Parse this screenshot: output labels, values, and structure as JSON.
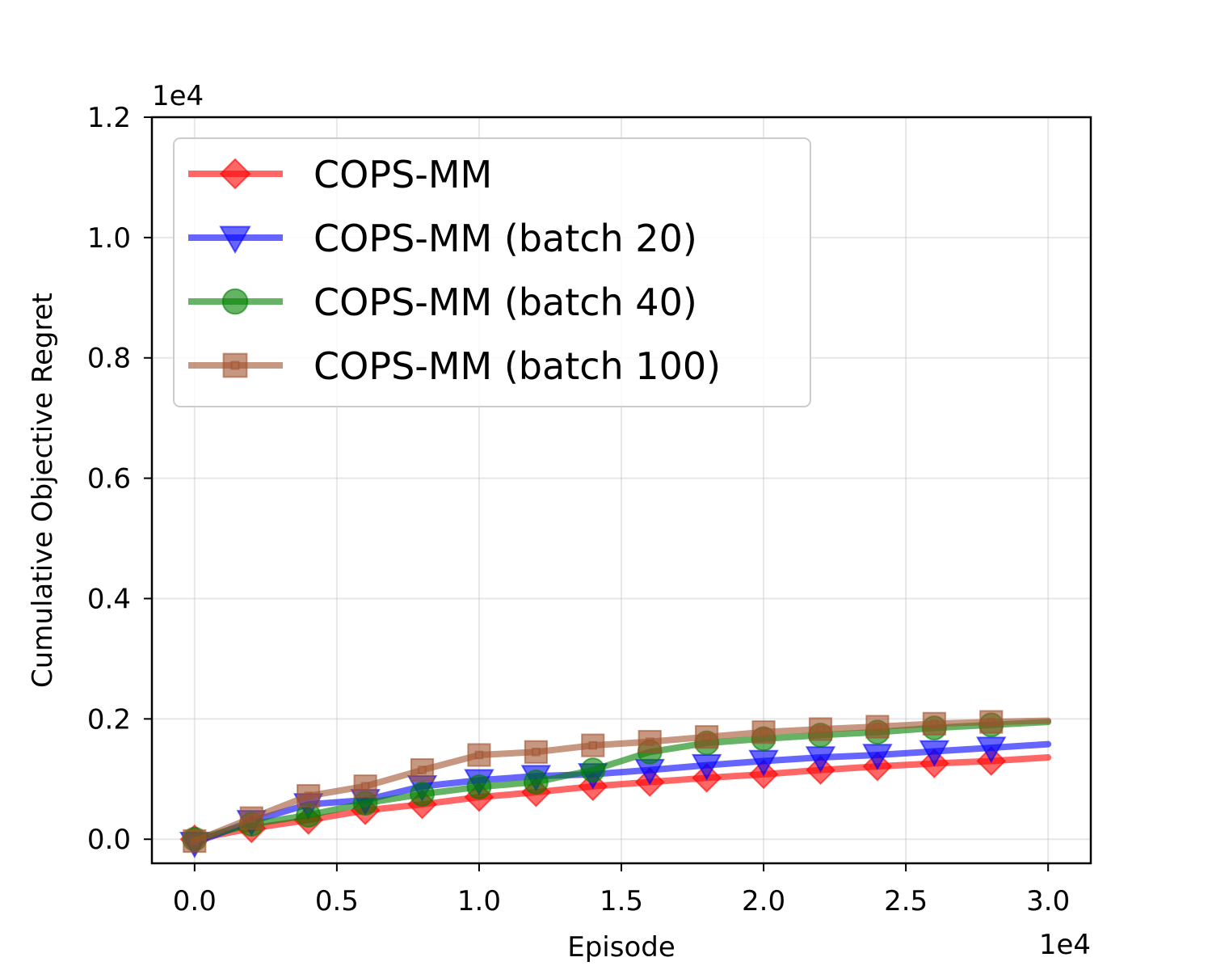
{
  "chart_data": {
    "type": "line",
    "xlabel": "Episode",
    "ylabel": "Cumulative Objective Regret",
    "x_exponent_label": "1e4",
    "y_exponent_label": "1e4",
    "x_scale": 10000,
    "y_scale": 10000,
    "xlim": [
      -1500,
      31500
    ],
    "ylim": [
      -400,
      12000
    ],
    "x_ticks": [
      0,
      5000,
      10000,
      15000,
      20000,
      25000,
      30000
    ],
    "x_tick_labels": [
      "0.0",
      "0.5",
      "1.0",
      "1.5",
      "2.0",
      "2.5",
      "3.0"
    ],
    "y_ticks": [
      0,
      2000,
      4000,
      6000,
      8000,
      10000,
      12000
    ],
    "y_tick_labels": [
      "0.0",
      "0.2",
      "0.4",
      "0.6",
      "0.8",
      "1.0",
      "1.2"
    ],
    "grid": true,
    "legend_position": "top-left",
    "series": [
      {
        "name": "COPS-MM",
        "color": "#ff0000",
        "marker": "diamond",
        "x": [
          0,
          2000,
          4000,
          6000,
          8000,
          10000,
          12000,
          14000,
          16000,
          18000,
          20000,
          22000,
          24000,
          26000,
          28000,
          30000
        ],
        "values": [
          0,
          180,
          320,
          480,
          580,
          700,
          780,
          880,
          950,
          1020,
          1080,
          1150,
          1210,
          1260,
          1300,
          1360
        ]
      },
      {
        "name": "COPS-MM (batch 20)",
        "color": "#0000ff",
        "marker": "triangle-down",
        "x": [
          0,
          2000,
          4000,
          6000,
          8000,
          10000,
          12000,
          14000,
          16000,
          18000,
          20000,
          22000,
          24000,
          26000,
          28000,
          30000
        ],
        "values": [
          -60,
          300,
          580,
          650,
          880,
          980,
          1050,
          1080,
          1150,
          1230,
          1300,
          1360,
          1400,
          1460,
          1520,
          1580
        ]
      },
      {
        "name": "COPS-MM (batch 40)",
        "color": "#008000",
        "marker": "circle",
        "x": [
          0,
          2000,
          4000,
          6000,
          8000,
          10000,
          12000,
          14000,
          16000,
          18000,
          20000,
          22000,
          24000,
          26000,
          28000,
          30000
        ],
        "values": [
          0,
          250,
          400,
          600,
          750,
          870,
          950,
          1150,
          1450,
          1600,
          1670,
          1730,
          1780,
          1850,
          1900,
          1950
        ]
      },
      {
        "name": "COPS-MM (batch 100)",
        "color": "#a0522d",
        "marker": "square",
        "x": [
          0,
          2000,
          4000,
          6000,
          8000,
          10000,
          12000,
          14000,
          16000,
          18000,
          20000,
          22000,
          24000,
          26000,
          28000,
          30000
        ],
        "values": [
          -30,
          350,
          720,
          880,
          1150,
          1400,
          1450,
          1560,
          1620,
          1700,
          1780,
          1830,
          1870,
          1920,
          1950,
          1970
        ]
      }
    ]
  }
}
